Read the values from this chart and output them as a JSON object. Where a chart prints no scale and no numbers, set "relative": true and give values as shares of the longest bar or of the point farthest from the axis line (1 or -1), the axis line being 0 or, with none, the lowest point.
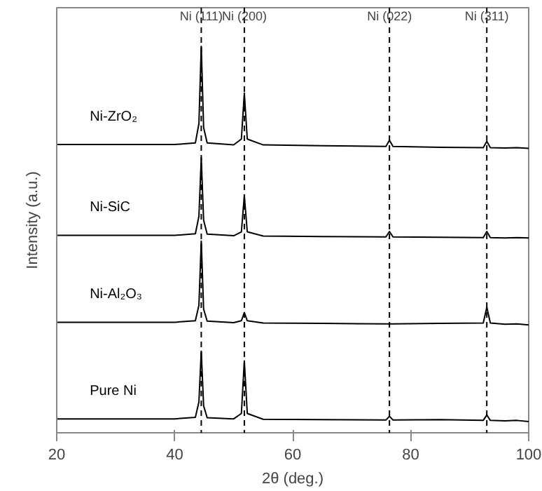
{
  "chart_data": {
    "type": "line",
    "relative": true,
    "xlabel": "2θ (deg.)",
    "ylabel": "Intensity (a.u.)",
    "xlim": [
      20,
      100
    ],
    "xticks": [
      20,
      40,
      60,
      80,
      100
    ],
    "tick_labels": "x",
    "grid": false,
    "marker": "none",
    "line_style": "solid",
    "x": [
      20,
      30,
      40,
      43.5,
      44.1,
      44.5,
      44.9,
      45.5,
      50,
      51.3,
      51.8,
      52.3,
      55,
      65,
      75.8,
      76.4,
      77,
      85,
      92.3,
      92.9,
      93.5,
      96,
      98,
      100
    ],
    "series": [
      {
        "name": "Ni-ZrO₂",
        "color": "#000000",
        "values": [
          0.746,
          0.746,
          0.746,
          0.75,
          0.8,
          1.0,
          0.79,
          0.75,
          0.745,
          0.76,
          0.879,
          0.76,
          0.745,
          0.743,
          0.741,
          0.757,
          0.741,
          0.739,
          0.738,
          0.754,
          0.738,
          0.737,
          0.738,
          0.736
        ]
      },
      {
        "name": "Ni-SiC",
        "color": "#000000",
        "values": [
          0.511,
          0.511,
          0.511,
          0.515,
          0.56,
          0.711,
          0.55,
          0.514,
          0.51,
          0.52,
          0.614,
          0.52,
          0.509,
          0.508,
          0.507,
          0.521,
          0.507,
          0.506,
          0.505,
          0.521,
          0.505,
          0.504,
          0.505,
          0.504
        ]
      },
      {
        "name": "Ni-Al₂O₃",
        "color": "#000000",
        "values": [
          0.286,
          0.286,
          0.286,
          0.29,
          0.33,
          0.496,
          0.32,
          0.289,
          0.285,
          0.29,
          0.311,
          0.29,
          0.284,
          0.283,
          0.282,
          0.282,
          0.282,
          0.283,
          0.284,
          0.325,
          0.284,
          0.281,
          0.282,
          0.279
        ]
      },
      {
        "name": "Pure Ni",
        "color": "#000000",
        "values": [
          0.036,
          0.036,
          0.036,
          0.04,
          0.08,
          0.211,
          0.07,
          0.039,
          0.036,
          0.05,
          0.186,
          0.05,
          0.035,
          0.034,
          0.033,
          0.043,
          0.033,
          0.034,
          0.032,
          0.046,
          0.032,
          0.031,
          0.032,
          0.029
        ]
      }
    ],
    "ref_lines": [
      {
        "axis": "x",
        "value": 44.5,
        "label": "Ni (111)",
        "color": "#000000",
        "line_style": "dashed"
      },
      {
        "axis": "x",
        "value": 51.8,
        "label": "Ni (200)",
        "color": "#000000",
        "line_style": "dashed"
      },
      {
        "axis": "x",
        "value": 76.4,
        "label": "Ni (022)",
        "color": "#000000",
        "line_style": "dashed"
      },
      {
        "axis": "x",
        "value": 92.9,
        "label": "Ni (311)",
        "color": "#000000",
        "line_style": "dashed"
      }
    ]
  }
}
